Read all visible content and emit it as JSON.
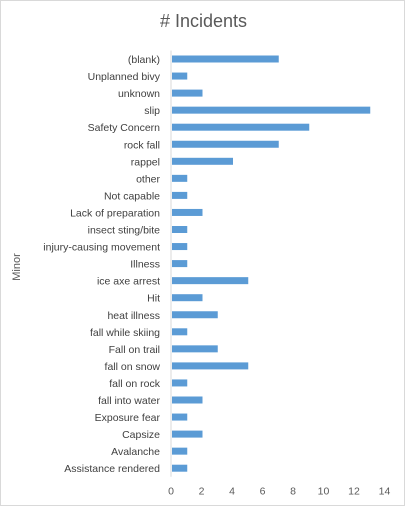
{
  "chart_data": {
    "type": "bar",
    "orientation": "horizontal",
    "title": "# Incidents",
    "ylabel": "Minor",
    "xlabel": "",
    "xlim": [
      0,
      14
    ],
    "xticks": [
      0,
      2,
      4,
      6,
      8,
      10,
      12,
      14
    ],
    "grid": false,
    "legend": "none",
    "bar_color": "#5b9bd5",
    "categories": [
      "(blank)",
      "Unplanned bivy",
      "unknown",
      "slip",
      "Safety Concern",
      "rock fall",
      "rappel",
      "other",
      "Not capable",
      "Lack of preparation",
      "insect sting/bite",
      "injury-causing movement",
      "Illness",
      "ice axe arrest",
      "Hit",
      "heat illness",
      "fall while skiing",
      "Fall on trail",
      "fall on snow",
      "fall on rock",
      "fall into water",
      "Exposure fear",
      "Capsize",
      "Avalanche",
      "Assistance rendered"
    ],
    "values": [
      7,
      1,
      2,
      13,
      9,
      7,
      4,
      1,
      1,
      2,
      1,
      1,
      1,
      5,
      2,
      3,
      1,
      3,
      5,
      1,
      2,
      1,
      2,
      1,
      1
    ]
  }
}
